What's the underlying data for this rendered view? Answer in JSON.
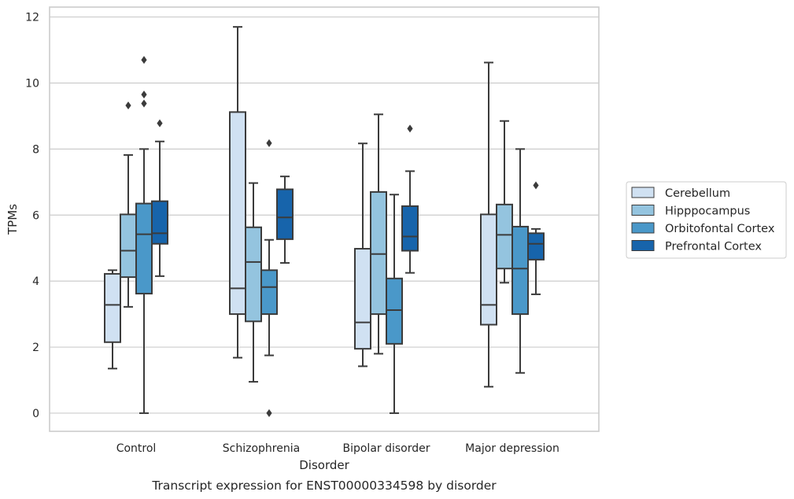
{
  "chart_data": {
    "type": "boxplot",
    "title": "",
    "caption": "Transcript expression for ENST00000334598 by disorder",
    "xlabel": "Disorder",
    "ylabel": "TPMs",
    "ylim": [
      -0.55,
      12.3
    ],
    "yticks": [
      "0",
      "2",
      "4",
      "6",
      "8",
      "10",
      "12"
    ],
    "grid": true,
    "legend_position": "right",
    "categories": [
      "Control",
      "Schizophrenia",
      "Bipolar disorder",
      "Major depression"
    ],
    "series": [
      {
        "name": "Cerebellum",
        "color": "#d0e1f2",
        "boxes": [
          {
            "whisker_low": 1.35,
            "q1": 2.15,
            "median": 3.28,
            "q3": 4.22,
            "whisker_high": 4.33,
            "outliers": []
          },
          {
            "whisker_low": 1.68,
            "q1": 3.0,
            "median": 3.78,
            "q3": 9.12,
            "whisker_high": 11.7,
            "outliers": []
          },
          {
            "whisker_low": 1.42,
            "q1": 1.95,
            "median": 2.75,
            "q3": 4.98,
            "whisker_high": 8.17,
            "outliers": []
          },
          {
            "whisker_low": 0.8,
            "q1": 2.68,
            "median": 3.28,
            "q3": 6.02,
            "whisker_high": 10.62,
            "outliers": []
          }
        ]
      },
      {
        "name": "Hipppocampus",
        "color": "#94c4df",
        "boxes": [
          {
            "whisker_low": 3.22,
            "q1": 4.12,
            "median": 4.92,
            "q3": 6.02,
            "whisker_high": 7.82,
            "outliers": [
              9.32
            ]
          },
          {
            "whisker_low": 0.95,
            "q1": 2.78,
            "median": 4.58,
            "q3": 5.63,
            "whisker_high": 6.97,
            "outliers": []
          },
          {
            "whisker_low": 1.8,
            "q1": 3.0,
            "median": 4.82,
            "q3": 6.7,
            "whisker_high": 9.05,
            "outliers": []
          },
          {
            "whisker_low": 3.95,
            "q1": 4.38,
            "median": 5.4,
            "q3": 6.32,
            "whisker_high": 8.85,
            "outliers": []
          }
        ]
      },
      {
        "name": "Orbitofontal Cortex",
        "color": "#4a98c9",
        "boxes": [
          {
            "whisker_low": 0.0,
            "q1": 3.62,
            "median": 5.42,
            "q3": 6.35,
            "whisker_high": 8.0,
            "outliers": [
              9.38,
              9.65,
              10.7
            ]
          },
          {
            "whisker_low": 1.75,
            "q1": 3.0,
            "median": 3.82,
            "q3": 4.33,
            "whisker_high": 5.25,
            "outliers": [
              0.0,
              8.18
            ]
          },
          {
            "whisker_low": 0.0,
            "q1": 2.1,
            "median": 3.12,
            "q3": 4.08,
            "whisker_high": 6.62,
            "outliers": []
          },
          {
            "whisker_low": 1.22,
            "q1": 3.0,
            "median": 4.38,
            "q3": 5.65,
            "whisker_high": 8.0,
            "outliers": []
          }
        ]
      },
      {
        "name": "Prefrontal Cortex",
        "color": "#1764ab",
        "boxes": [
          {
            "whisker_low": 4.15,
            "q1": 5.13,
            "median": 5.45,
            "q3": 6.42,
            "whisker_high": 8.23,
            "outliers": [
              8.78
            ]
          },
          {
            "whisker_low": 4.55,
            "q1": 5.27,
            "median": 5.93,
            "q3": 6.78,
            "whisker_high": 7.17,
            "outliers": []
          },
          {
            "whisker_low": 4.25,
            "q1": 4.92,
            "median": 5.35,
            "q3": 6.27,
            "whisker_high": 7.33,
            "outliers": [
              8.62
            ]
          },
          {
            "whisker_low": 3.6,
            "q1": 4.65,
            "median": 5.13,
            "q3": 5.45,
            "whisker_high": 5.58,
            "outliers": [
              6.9
            ]
          }
        ]
      }
    ]
  }
}
